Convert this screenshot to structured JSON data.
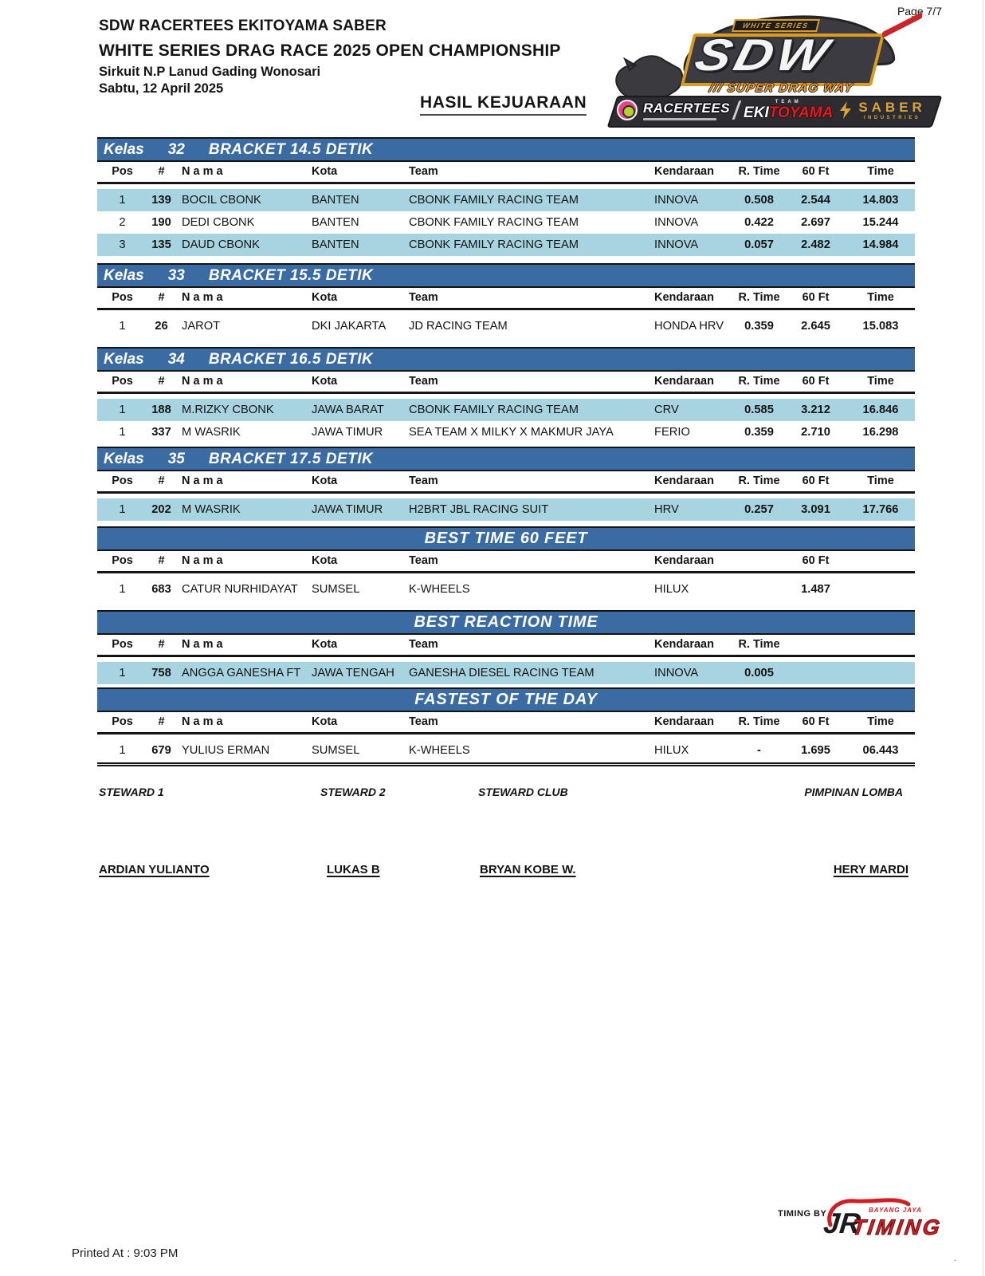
{
  "page": {
    "label": "Page 7/7",
    "printed_at": "Printed At : 9:03 PM",
    "timing_by": "TIMING BY :",
    "corner_dot": "."
  },
  "header": {
    "line1": "SDW RACERTEES EKITOYAMA SABER",
    "line2": "WHITE SERIES DRAG RACE 2025 OPEN CHAMPIONSHIP",
    "line3": "Sirkuit N.P Lanud Gading Wonosari",
    "line4": "Sabtu, 12 April 2025",
    "doc_title": "HASIL KEJUARAAN"
  },
  "logo": {
    "series_tag": "WHITE SERIES",
    "sdw": "SDW",
    "tagline_prefix": "///",
    "tagline": "SUPER DRAG WAY",
    "racertees": "RACERTEES",
    "team": "TEAM",
    "eki": "EKI",
    "toyama": "TOYAMA",
    "saber": "SABER",
    "industries": "INDUSTRIES"
  },
  "timing_logo": {
    "jr": "JR",
    "brand": "BAYANG JAYA",
    "timing": "TIMING"
  },
  "tables": [
    {
      "id": "kelas-32",
      "bar": {
        "type": "class",
        "prefix": "Kelas",
        "num": "32",
        "name": "BRACKET 14.5 DETIK"
      },
      "cols": [
        "Pos",
        "#",
        "N a m a",
        "Kota",
        "Team",
        "Kendaraan",
        "R. Time",
        "60 Ft",
        "Time"
      ],
      "rows": [
        {
          "hl": true,
          "cells": [
            "1",
            "139",
            "BOCIL CBONK",
            "BANTEN",
            "CBONK FAMILY RACING TEAM",
            "INNOVA",
            "0.508",
            "2.544",
            "14.803"
          ]
        },
        {
          "hl": false,
          "cells": [
            "2",
            "190",
            "DEDI CBONK",
            "BANTEN",
            "CBONK FAMILY RACING TEAM",
            "INNOVA",
            "0.422",
            "2.697",
            "15.244"
          ]
        },
        {
          "hl": true,
          "cells": [
            "3",
            "135",
            "DAUD CBONK",
            "BANTEN",
            "CBONK FAMILY RACING TEAM",
            "INNOVA",
            "0.057",
            "2.482",
            "14.984"
          ]
        }
      ]
    },
    {
      "id": "kelas-33",
      "bar": {
        "type": "class",
        "prefix": "Kelas",
        "num": "33",
        "name": "BRACKET 15.5 DETIK"
      },
      "cols": [
        "Pos",
        "#",
        "N a m a",
        "Kota",
        "Team",
        "Kendaraan",
        "R. Time",
        "60 Ft",
        "Time"
      ],
      "rows": [
        {
          "hl": false,
          "cells": [
            "1",
            "26",
            "JAROT",
            "DKI JAKARTA",
            "JD RACING TEAM",
            "HONDA HRV",
            "0.359",
            "2.645",
            "15.083"
          ]
        }
      ]
    },
    {
      "id": "kelas-34",
      "bar": {
        "type": "class",
        "prefix": "Kelas",
        "num": "34",
        "name": "BRACKET 16.5 DETIK"
      },
      "cols": [
        "Pos",
        "#",
        "N a m a",
        "Kota",
        "Team",
        "Kendaraan",
        "R. Time",
        "60 Ft",
        "Time"
      ],
      "rows": [
        {
          "hl": true,
          "cells": [
            "1",
            "188",
            "M.RIZKY CBONK",
            "JAWA BARAT",
            "CBONK FAMILY RACING TEAM",
            "CRV",
            "0.585",
            "3.212",
            "16.846"
          ]
        },
        {
          "hl": false,
          "cells": [
            "1",
            "337",
            "M WASRIK",
            "JAWA TIMUR",
            "SEA TEAM X MILKY X MAKMUR JAYA",
            "FERIO",
            "0.359",
            "2.710",
            "16.298"
          ]
        }
      ]
    },
    {
      "id": "kelas-35",
      "bar": {
        "type": "class",
        "prefix": "Kelas",
        "num": "35",
        "name": "BRACKET 17.5 DETIK"
      },
      "cols": [
        "Pos",
        "#",
        "N a m a",
        "Kota",
        "Team",
        "Kendaraan",
        "R. Time",
        "60 Ft",
        "Time"
      ],
      "rows": [
        {
          "hl": true,
          "cells": [
            "1",
            "202",
            "M WASRIK",
            "JAWA TIMUR",
            "H2BRT JBL RACING SUIT",
            "HRV",
            "0.257",
            "3.091",
            "17.766"
          ]
        }
      ]
    },
    {
      "id": "best-time-60-feet",
      "bar": {
        "type": "center",
        "name": "BEST TIME 60 FEET"
      },
      "cols": [
        "Pos",
        "#",
        "N a m a",
        "Kota",
        "Team",
        "Kendaraan",
        "",
        "60 Ft",
        ""
      ],
      "rows": [
        {
          "hl": false,
          "cells": [
            "1",
            "683",
            "CATUR NURHIDAYAT",
            "SUMSEL",
            "K-WHEELS",
            "HILUX",
            "",
            "1.487",
            ""
          ]
        }
      ]
    },
    {
      "id": "best-reaction-time",
      "bar": {
        "type": "center",
        "name": "BEST REACTION TIME"
      },
      "cols": [
        "Pos",
        "#",
        "N a m a",
        "Kota",
        "Team",
        "Kendaraan",
        "R. Time",
        "",
        ""
      ],
      "rows": [
        {
          "hl": true,
          "cells": [
            "1",
            "758",
            "ANGGA GANESHA FT",
            "JAWA TENGAH",
            "GANESHA DIESEL RACING TEAM",
            "INNOVA",
            "0.005",
            "",
            ""
          ]
        }
      ]
    },
    {
      "id": "fastest-of-the-day",
      "bar": {
        "type": "center",
        "name": "FASTEST OF THE DAY"
      },
      "cols": [
        "Pos",
        "#",
        "N a m a",
        "Kota",
        "Team",
        "Kendaraan",
        "R. Time",
        "60 Ft",
        "Time"
      ],
      "rows": [
        {
          "hl": false,
          "cells": [
            "1",
            "679",
            "YULIUS ERMAN",
            "SUMSEL",
            "K-WHEELS",
            "HILUX",
            "-",
            "1.695",
            "06.443"
          ]
        }
      ]
    }
  ],
  "stewards": {
    "labels": [
      "STEWARD 1",
      "STEWARD 2",
      "STEWARD CLUB",
      "PIMPINAN LOMBA"
    ],
    "names": [
      "ARDIAN YULIANTO",
      "LUKAS B",
      "BRYAN KOBE W.",
      "HERY MARDI"
    ]
  }
}
